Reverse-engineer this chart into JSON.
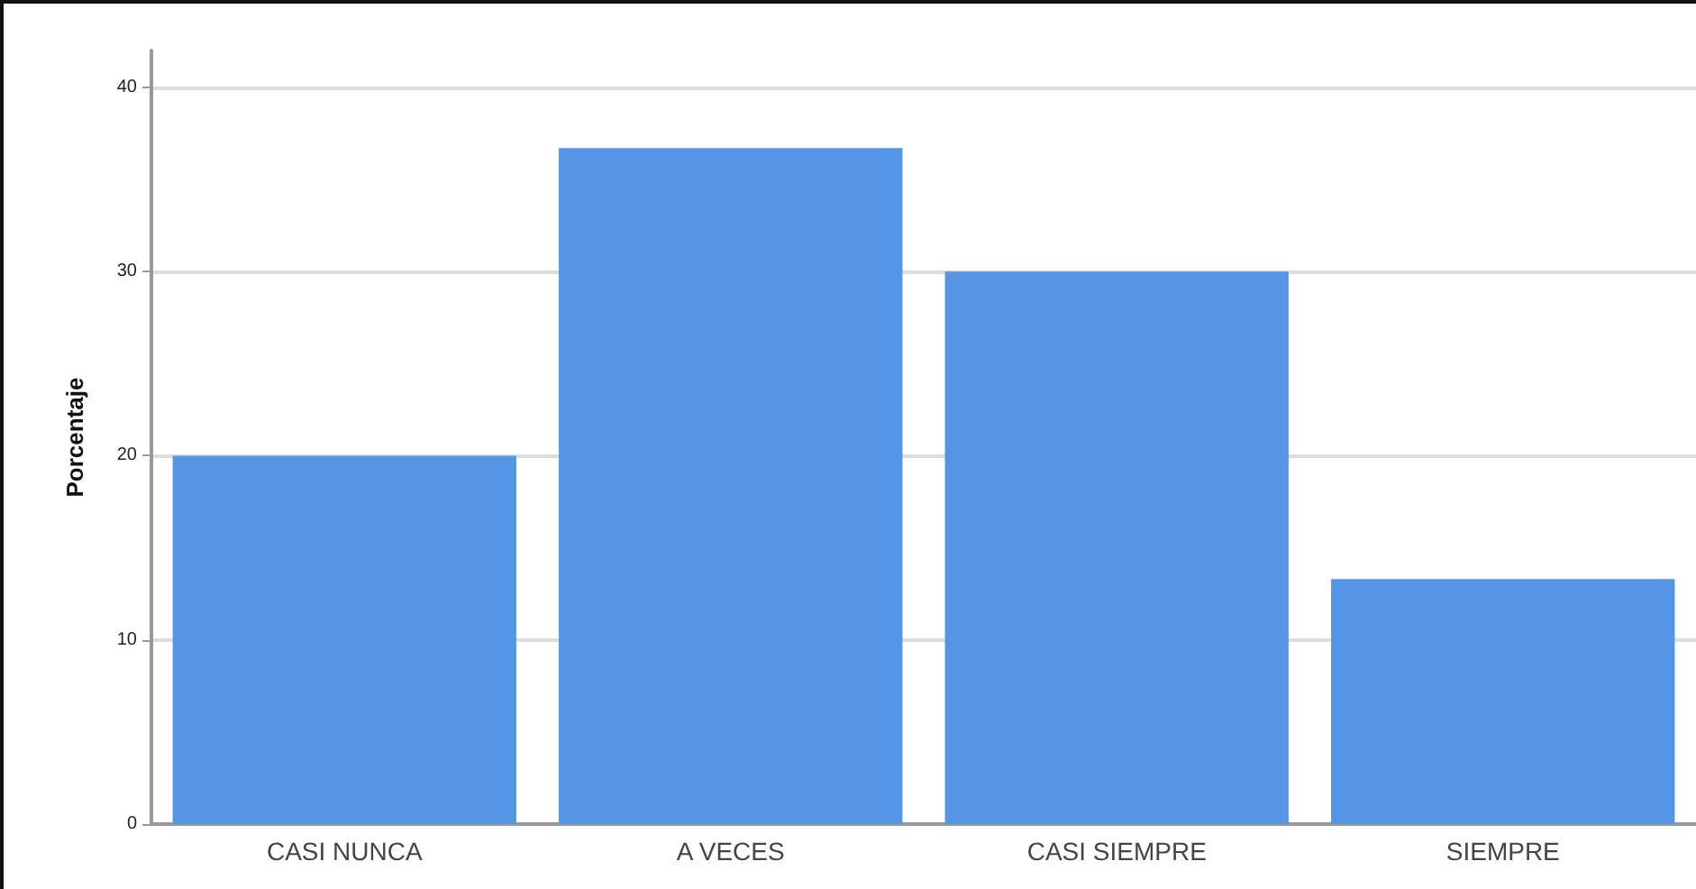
{
  "chart_data": {
    "type": "bar",
    "ylabel": "Porcentaje",
    "categories": [
      "CASI NUNCA",
      "A VECES",
      "CASI SIEMPRE",
      "SIEMPRE"
    ],
    "values": [
      20,
      36.7,
      30,
      13.3
    ],
    "color": "#5595e5",
    "ylim": [
      0,
      42
    ],
    "yticks": [
      0,
      10,
      20,
      30,
      40
    ],
    "grid": "y"
  }
}
